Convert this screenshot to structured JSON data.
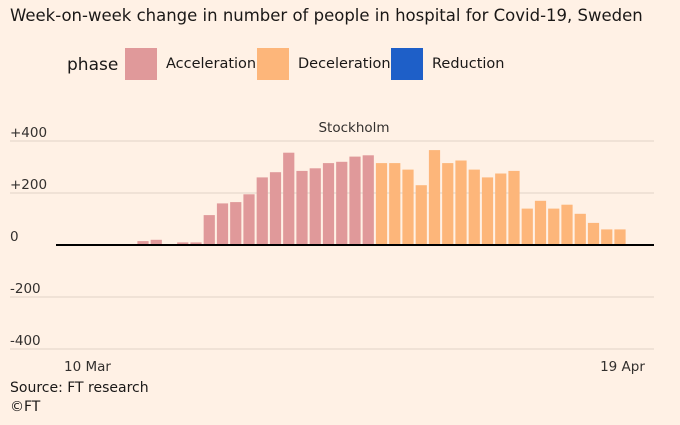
{
  "title": "Week-on-week change in number of people in hospital for Covid-19, Sweden",
  "legend": {
    "title": "phase",
    "items": [
      {
        "label": "Acceleration",
        "color": "#e0999a"
      },
      {
        "label": "Deceleration",
        "color": "#fdb67a"
      },
      {
        "label": "Reduction",
        "color": "#1e5fc8"
      }
    ]
  },
  "footer": {
    "source": "Source: FT research",
    "copyright": "©FT"
  },
  "chart_data": {
    "type": "bar",
    "title": "",
    "panel_title": "Stockholm",
    "xlabel": "",
    "ylabel": "",
    "ylim": [
      -420,
      420
    ],
    "yticks": [
      400,
      200,
      0,
      -200,
      -400
    ],
    "ytick_labels": [
      "+400",
      "+200",
      "0",
      "-200",
      "-400"
    ],
    "xtick_labels": [
      {
        "label": "10 Mar",
        "index": 0
      },
      {
        "label": "19 Apr",
        "index": 40
      }
    ],
    "grid": true,
    "legend_position": "top",
    "colors": {
      "Acceleration": "#e0999a",
      "Deceleration": "#fdb67a",
      "Reduction": "#1e5fc8"
    },
    "values": [
      0,
      0,
      0,
      0,
      0,
      0,
      15,
      20,
      0,
      10,
      10,
      115,
      160,
      165,
      195,
      260,
      280,
      355,
      285,
      295,
      315,
      320,
      340,
      345,
      315,
      315,
      290,
      230,
      365,
      315,
      325,
      290,
      260,
      275,
      285,
      140,
      170,
      140,
      155,
      120,
      85,
      60,
      60
    ],
    "phases": [
      "Acceleration",
      "Acceleration",
      "Acceleration",
      "Acceleration",
      "Acceleration",
      "Acceleration",
      "Acceleration",
      "Acceleration",
      "Acceleration",
      "Acceleration",
      "Acceleration",
      "Acceleration",
      "Acceleration",
      "Acceleration",
      "Acceleration",
      "Acceleration",
      "Acceleration",
      "Acceleration",
      "Acceleration",
      "Acceleration",
      "Acceleration",
      "Acceleration",
      "Acceleration",
      "Acceleration",
      "Deceleration",
      "Deceleration",
      "Deceleration",
      "Deceleration",
      "Deceleration",
      "Deceleration",
      "Deceleration",
      "Deceleration",
      "Deceleration",
      "Deceleration",
      "Deceleration",
      "Deceleration",
      "Deceleration",
      "Deceleration",
      "Deceleration",
      "Deceleration",
      "Deceleration",
      "Deceleration",
      "Deceleration"
    ]
  }
}
